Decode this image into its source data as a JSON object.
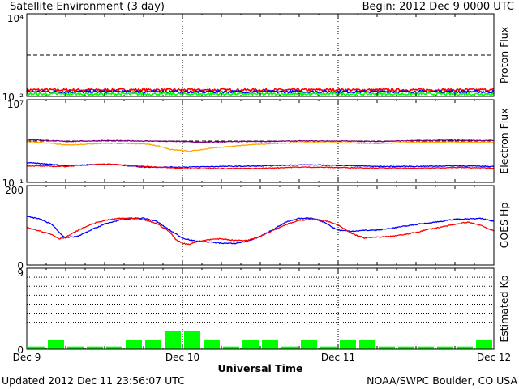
{
  "header": {
    "title": "Satellite Environment (3 day)",
    "begin": "Begin:  2012 Dec 9 0000 UTC"
  },
  "footer": {
    "updated": "Updated 2012 Dec 11 23:56:07 UTC",
    "credit": "NOAA/SWPC Boulder, CO USA"
  },
  "colors": {
    "red": "#ff0000",
    "blue": "#0000ff",
    "green": "#00ff00",
    "orange": "#ffa500",
    "purple": "#800080",
    "dark_red": "#800000"
  },
  "chart_data": [
    {
      "type": "line",
      "ylabel": "Proton Flux",
      "yscale": "log",
      "ylim": [
        0.01,
        10000
      ],
      "y_tick_labels": [
        "10⁴",
        "10⁻²"
      ],
      "threshold": 10,
      "series": [
        {
          "color": "#ff0000",
          "x": [
            0,
            72
          ],
          "y": [
            0.03,
            0.03
          ]
        },
        {
          "color": "#0000ff",
          "x": [
            0,
            72
          ],
          "y": [
            0.022,
            0.022
          ]
        },
        {
          "color": "#00ff00",
          "x": [
            0,
            72
          ],
          "y": [
            0.015,
            0.015
          ]
        }
      ]
    },
    {
      "type": "line",
      "ylabel": "Electron Flux",
      "yscale": "log",
      "ylim": [
        0.1,
        10000000
      ],
      "y_tick_labels": [
        "10⁷",
        "10⁻¹"
      ],
      "threshold": 1000,
      "series": [
        {
          "color": "#800080",
          "x": [
            0,
            6,
            12,
            18,
            24,
            27,
            30,
            36,
            42,
            48,
            54,
            60,
            66,
            72
          ],
          "y": [
            1400,
            900,
            1100,
            1000,
            900,
            750,
            850,
            900,
            1000,
            1000,
            900,
            1100,
            1200,
            1100
          ]
        },
        {
          "color": "#ffa500",
          "x": [
            0,
            6,
            12,
            18,
            22,
            24,
            25,
            27,
            30,
            36,
            42,
            48,
            54,
            60,
            66,
            72
          ],
          "y": [
            900,
            400,
            600,
            550,
            150,
            120,
            100,
            150,
            250,
            500,
            700,
            700,
            550,
            750,
            800,
            700
          ]
        },
        {
          "color": "#0000ff",
          "x": [
            0,
            6,
            12,
            18,
            24,
            30,
            36,
            42,
            48,
            54,
            60,
            66,
            72
          ],
          "y": [
            8,
            4,
            6,
            3,
            3,
            3.5,
            3.8,
            5,
            4.5,
            3.5,
            3.5,
            4,
            3.5
          ]
        },
        {
          "color": "#ff0000",
          "x": [
            0,
            6,
            12,
            18,
            24,
            30,
            36,
            42,
            48,
            54,
            60,
            66,
            72
          ],
          "y": [
            4,
            3.5,
            6,
            3.5,
            2.2,
            2.2,
            2.3,
            3,
            2.8,
            2.5,
            2.3,
            2.8,
            2.4
          ]
        }
      ]
    },
    {
      "type": "line",
      "ylabel": "GOES Hp",
      "ylim": [
        0,
        200
      ],
      "y_tick_labels": [
        "200",
        "0"
      ],
      "series": [
        {
          "color": "#0000ff",
          "x": [
            0,
            2,
            4,
            5,
            6,
            8,
            10,
            12,
            14,
            16,
            18,
            20,
            22,
            24,
            26,
            28,
            30,
            32,
            34,
            36,
            38,
            40,
            42,
            44,
            46,
            47,
            48,
            50,
            52,
            54,
            56,
            58,
            60,
            62,
            64,
            66,
            68,
            70,
            72
          ],
          "y": [
            122,
            116,
            101,
            82,
            68,
            73,
            89,
            103,
            112,
            117,
            118,
            110,
            88,
            68,
            60,
            58,
            55,
            54,
            60,
            72,
            90,
            108,
            117,
            118,
            107,
            96,
            88,
            85,
            87,
            88,
            92,
            97,
            102,
            106,
            110,
            115,
            116,
            117,
            110
          ]
        },
        {
          "color": "#ff0000",
          "x": [
            0,
            2,
            4,
            5,
            6,
            8,
            10,
            12,
            14,
            16,
            18,
            20,
            22,
            23,
            24,
            25,
            26,
            28,
            30,
            32,
            34,
            36,
            38,
            40,
            42,
            44,
            46,
            48,
            50,
            52,
            54,
            56,
            58,
            60,
            62,
            64,
            66,
            68,
            70,
            72
          ],
          "y": [
            95,
            86,
            76,
            66,
            70,
            88,
            103,
            112,
            117,
            118,
            114,
            105,
            84,
            64,
            55,
            52,
            58,
            64,
            66,
            62,
            62,
            72,
            88,
            102,
            112,
            116,
            112,
            100,
            80,
            68,
            70,
            72,
            76,
            82,
            90,
            96,
            102,
            108,
            100,
            85
          ]
        }
      ]
    },
    {
      "type": "bar",
      "ylabel": "Estimated Kp",
      "ylim": [
        0,
        9
      ],
      "y_tick_labels": [
        "9",
        "0"
      ],
      "kp_grid": [
        3,
        4,
        5,
        6,
        7,
        8
      ],
      "bar_interval_hours": 3,
      "values": [
        0.3,
        1,
        0.3,
        0.3,
        0.3,
        1,
        1,
        2,
        2,
        1,
        0.3,
        1,
        1,
        0.3,
        1,
        0.3,
        1,
        1,
        0.3,
        0.3,
        0.3,
        0.3,
        0.3,
        1
      ]
    }
  ],
  "x_axis": {
    "label": "Universal Time",
    "xlim": [
      0,
      72
    ],
    "tick_labels": [
      "Dec 9",
      "Dec 10",
      "Dec 11",
      "Dec 12"
    ],
    "day_lines": [
      24,
      48
    ]
  }
}
